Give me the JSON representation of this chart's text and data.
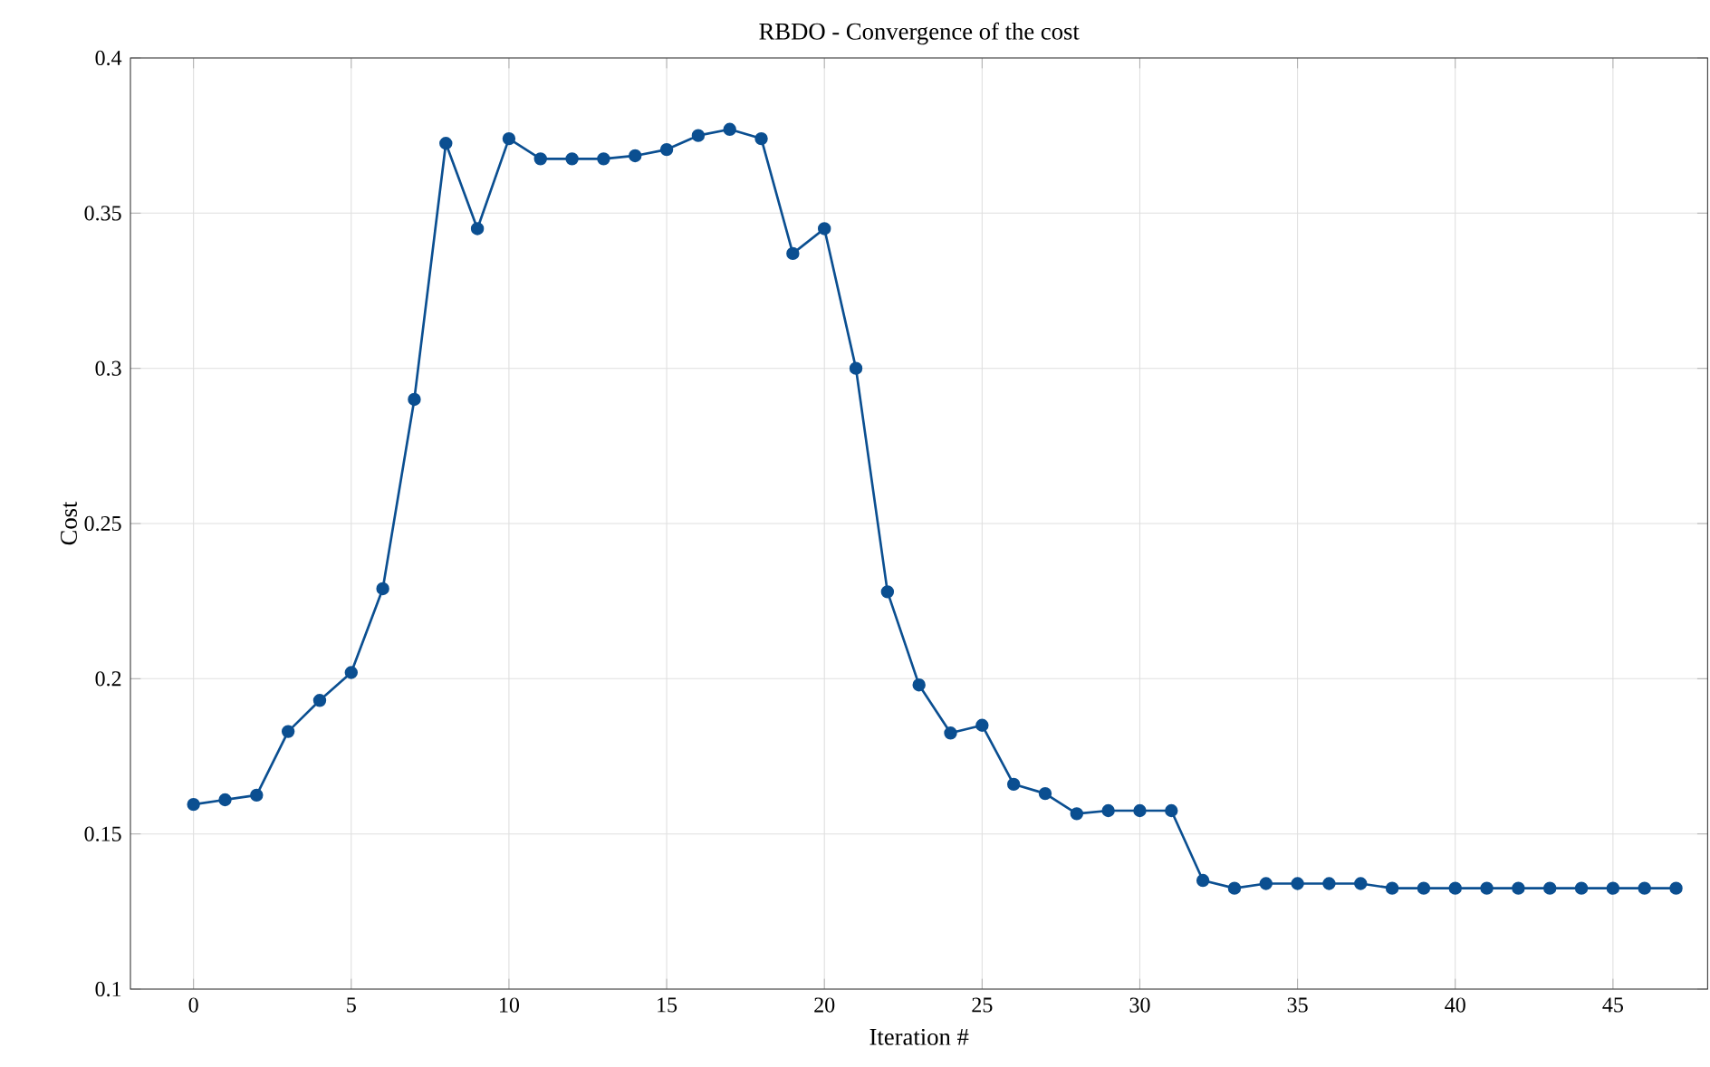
{
  "chart_data": {
    "type": "line",
    "title": "RBDO - Convergence of the cost",
    "xlabel": "Iteration #",
    "ylabel": "Cost",
    "x": [
      0,
      1,
      2,
      3,
      4,
      5,
      6,
      7,
      8,
      9,
      10,
      11,
      12,
      13,
      14,
      15,
      16,
      17,
      18,
      19,
      20,
      21,
      22,
      23,
      24,
      25,
      26,
      27,
      28,
      29,
      30,
      31,
      32,
      33,
      34,
      35,
      36,
      37,
      38,
      39,
      40,
      41,
      42,
      43,
      44,
      45,
      46,
      47
    ],
    "series": [
      {
        "color": "#0b4f91",
        "values": [
          0.1595,
          0.161,
          0.1625,
          0.183,
          0.193,
          0.202,
          0.229,
          0.29,
          0.3725,
          0.345,
          0.374,
          0.3675,
          0.3675,
          0.3675,
          0.3685,
          0.3705,
          0.375,
          0.377,
          0.374,
          0.337,
          0.345,
          0.3,
          0.228,
          0.198,
          0.1825,
          0.185,
          0.166,
          0.163,
          0.1565,
          0.1575,
          0.1575,
          0.1575,
          0.135,
          0.1325,
          0.134,
          0.134,
          0.134,
          0.134,
          0.1325,
          0.1325,
          0.1325,
          0.1325,
          0.1325,
          0.1325,
          0.1325,
          0.1325,
          0.1325,
          0.1325
        ]
      }
    ],
    "xlim": [
      -2,
      48
    ],
    "ylim": [
      0.1,
      0.4
    ],
    "xticks": [
      0,
      5,
      10,
      15,
      20,
      25,
      30,
      35,
      40,
      45
    ],
    "yticks": [
      0.1,
      0.15,
      0.2,
      0.25,
      0.3,
      0.35,
      0.4
    ],
    "grid": true,
    "marker": "circle",
    "line_style": "solid"
  }
}
